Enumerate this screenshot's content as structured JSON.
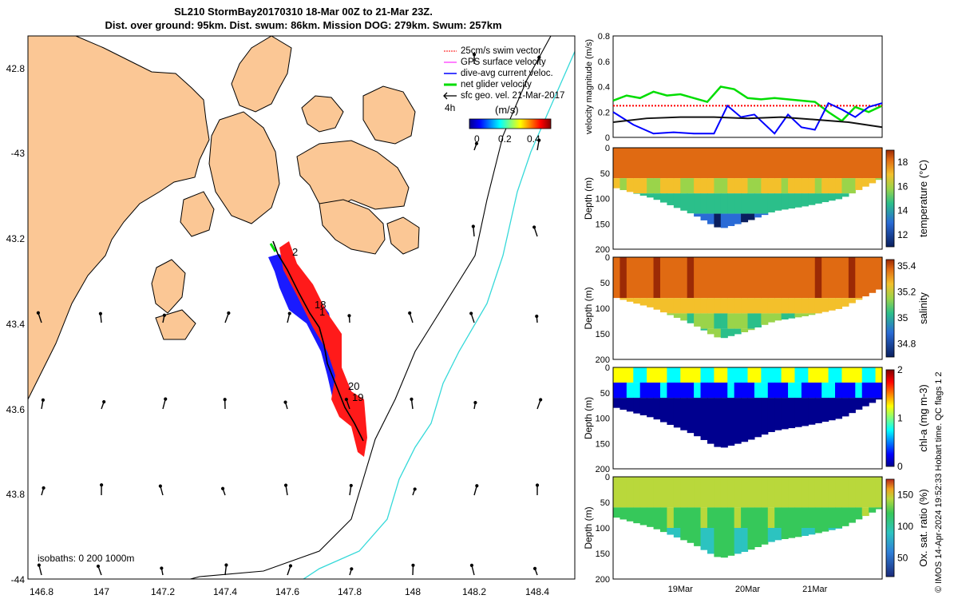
{
  "title_line1": "SL210 StormBay20170310 18-Mar 00Z to 21-Mar 23Z.",
  "title_line2": "Dist. over ground: 95km. Dist. swum: 86km. Mission DOG: 279km. Swum: 257km",
  "credit": "© IMOS 14-Apr-2024 19:52:33 Hobart time. QC flags 1  2",
  "map": {
    "lon_ticks": [
      "146.8",
      "147",
      "147.2",
      "147.4",
      "147.6",
      "147.8",
      "148",
      "148.2",
      "148.4"
    ],
    "lat_ticks": [
      "42.8",
      "-43",
      "43.2",
      "43.4",
      "43.6",
      "43.8",
      "-44"
    ],
    "legend": [
      {
        "label": "25cm/s swim vector",
        "color": "#ff0000"
      },
      {
        "label": "GPS surface velocity",
        "color": "#ff00ff"
      },
      {
        "label": "dive-avg current veloc.",
        "color": "#0000ff"
      },
      {
        "label": "net glider velocity",
        "color": "#00dd00"
      },
      {
        "label": "sfc geo. vel. 21-Mar-2017",
        "color": "#000000"
      }
    ],
    "legend_extra": "4h",
    "colorbar_unit": "(m/s)",
    "colorbar_ticks": [
      "0",
      "0.2",
      "0.4"
    ],
    "isobaths_label": "isobaths: 0   200  1000m",
    "day_labels": [
      "2",
      "18",
      "1",
      "20",
      "19"
    ],
    "land_color": "#fbc795"
  },
  "chart_data": [
    {
      "type": "line",
      "ylabel": "velocity magnitude (m/s)",
      "ylim": [
        0,
        0.8
      ],
      "yticks": [
        "0",
        "0.2",
        "0.4",
        "0.6",
        "0.8"
      ],
      "x_range_days": [
        18.0,
        22.0
      ],
      "series": [
        {
          "color": "#00dd00",
          "x": [
            18.0,
            18.2,
            18.4,
            18.6,
            18.8,
            19.0,
            19.2,
            19.4,
            19.6,
            19.8,
            20.0,
            20.2,
            20.4,
            20.6,
            20.8,
            21.0,
            21.2,
            21.4,
            21.6,
            21.8,
            22.0
          ],
          "values": [
            0.29,
            0.33,
            0.31,
            0.36,
            0.33,
            0.34,
            0.31,
            0.28,
            0.4,
            0.38,
            0.31,
            0.3,
            0.31,
            0.3,
            0.29,
            0.28,
            0.2,
            0.13,
            0.24,
            0.2,
            0.25
          ]
        },
        {
          "color": "#ff0000",
          "x": [
            18.0,
            22.0
          ],
          "values": [
            0.25,
            0.25
          ]
        },
        {
          "color": "#0000ff",
          "x": [
            18.0,
            18.3,
            18.6,
            18.9,
            19.2,
            19.5,
            19.7,
            19.9,
            20.1,
            20.4,
            20.6,
            20.8,
            21.0,
            21.2,
            21.4,
            21.6,
            21.8,
            22.0
          ],
          "values": [
            0.2,
            0.1,
            0.03,
            0.04,
            0.03,
            0.03,
            0.25,
            0.16,
            0.18,
            0.03,
            0.18,
            0.08,
            0.06,
            0.27,
            0.22,
            0.16,
            0.24,
            0.27
          ]
        },
        {
          "color": "#111111",
          "x": [
            18.0,
            18.5,
            19.0,
            19.5,
            20.0,
            20.5,
            21.0,
            21.5,
            22.0
          ],
          "values": [
            0.12,
            0.15,
            0.16,
            0.16,
            0.15,
            0.16,
            0.14,
            0.12,
            0.08
          ]
        }
      ]
    },
    {
      "type": "heatmap",
      "variable": "temperature (°C)",
      "ylabel": "Depth (m)",
      "ylim": [
        0,
        200
      ],
      "yticks": [
        "0",
        "50",
        "100",
        "150",
        "200"
      ],
      "colorbar_ticks": [
        "18",
        "16",
        "14",
        "12"
      ],
      "clim": [
        11,
        19
      ],
      "bands": [
        [
          0,
          60,
          17.2
        ],
        [
          60,
          90,
          15.8
        ],
        [
          90,
          130,
          13.8
        ],
        [
          130,
          160,
          12.4
        ]
      ]
    },
    {
      "type": "heatmap",
      "variable": "salinity",
      "ylabel": "Depth (m)",
      "ylim": [
        0,
        200
      ],
      "yticks": [
        "0",
        "50",
        "100",
        "150",
        "200"
      ],
      "colorbar_ticks": [
        "35.4",
        "35.2",
        "35",
        "34.8"
      ],
      "clim": [
        34.7,
        35.45
      ],
      "bands": [
        [
          0,
          80,
          35.3
        ],
        [
          80,
          110,
          35.18
        ],
        [
          110,
          140,
          35.05
        ],
        [
          140,
          160,
          35.0
        ]
      ]
    },
    {
      "type": "heatmap",
      "variable": "chl-a (mg m-3)",
      "ylabel": "Depth (m)",
      "ylim": [
        0,
        200
      ],
      "yticks": [
        "0",
        "50",
        "100",
        "150",
        "200"
      ],
      "colorbar_ticks": [
        "2",
        "1",
        "0"
      ],
      "clim": [
        0,
        2
      ],
      "bands": [
        [
          0,
          30,
          1.0
        ],
        [
          30,
          60,
          0.6
        ],
        [
          60,
          160,
          0.1
        ]
      ]
    },
    {
      "type": "heatmap",
      "variable": "Ox. sat. ratio (%)",
      "ylabel": "Depth (m)",
      "ylim": [
        0,
        200
      ],
      "yticks": [
        "0",
        "50",
        "100",
        "150",
        "200"
      ],
      "colorbar_ticks": [
        "150",
        "100",
        "50"
      ],
      "clim": [
        20,
        175
      ],
      "bands": [
        [
          0,
          60,
          118
        ],
        [
          60,
          100,
          100
        ],
        [
          100,
          160,
          88
        ]
      ]
    }
  ],
  "time_ticks": [
    "19Mar",
    "20Mar",
    "21Mar"
  ]
}
